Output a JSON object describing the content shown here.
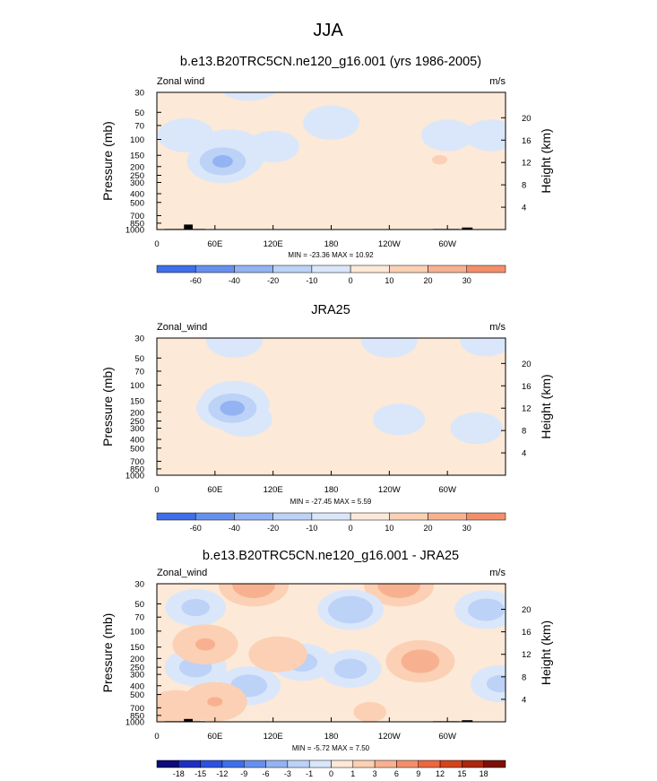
{
  "figure": {
    "title": "JJA"
  },
  "colors": {
    "frame": "#000000",
    "terrain": "#000000"
  },
  "chart_data": [
    {
      "type": "heatmap",
      "title": "b.e13.B20TRC5CN.ne120_g16.001 (yrs 1986-2005)",
      "field_label": "Zonal wind",
      "units": "m/s",
      "ylabel": "Pressure (mb)",
      "ylabel_right": "Height (km)",
      "x_ticks": [
        "0",
        "60E",
        "120E",
        "180",
        "120W",
        "60W"
      ],
      "x_tick_lon": [
        0,
        60,
        120,
        180,
        240,
        300
      ],
      "xlim": [
        0,
        360
      ],
      "y_ticks": [
        "30",
        "50",
        "70",
        "100",
        "150",
        "200",
        "250",
        "300",
        "400",
        "500",
        "700",
        "850",
        "1000"
      ],
      "ylim_mb": [
        1000,
        30
      ],
      "height_ticks": [
        "20",
        "16",
        "12",
        "8",
        "4"
      ],
      "stats": "MIN = -23.36  MAX =  10.92",
      "colorbar": {
        "levels": [
          "-60",
          "-40",
          "-20",
          "-10",
          "0",
          "10",
          "20",
          "30"
        ],
        "colors": [
          "#0b0b7a",
          "#1f30c0",
          "#2e52dd",
          "#3f6fe8",
          "#6790ee",
          "#93b3f3",
          "#bcd2f7",
          "#dae7fa",
          "#fde9d7",
          "#fbd0b4",
          "#f8b190",
          "#f48e6a",
          "#ea6740",
          "#d1441c",
          "#a9280f",
          "#7c1006"
        ]
      },
      "background_value": 2,
      "blobs": [
        {
          "lon": 95,
          "p": 22,
          "value": -12
        },
        {
          "lon": 180,
          "p": 65,
          "value": -4
        },
        {
          "lon": 300,
          "p": 90,
          "value": -3
        },
        {
          "lon": 345,
          "p": 90,
          "value": -3
        },
        {
          "lon": 30,
          "p": 90,
          "value": -4
        },
        {
          "lon": 75,
          "p": 128,
          "value": -9
        },
        {
          "lon": 75,
          "p": 158,
          "value": -16
        },
        {
          "lon": 68,
          "p": 175,
          "value": -22
        },
        {
          "lon": 120,
          "p": 120,
          "value": -3
        },
        {
          "lon": 272,
          "p": 145,
          "value": 8
        },
        {
          "lon": 292,
          "p": 168,
          "value": 10
        },
        {
          "lon": 70,
          "p": 700,
          "value": 7
        },
        {
          "lon": 95,
          "p": 450,
          "value": 4
        },
        {
          "lon": 60,
          "p": 850,
          "value": 4
        },
        {
          "lon": 250,
          "p": 380,
          "value": 6
        }
      ],
      "terrain": [
        {
          "lon0": 8,
          "lon1": 50,
          "p": 985
        },
        {
          "lon0": 28,
          "lon1": 37,
          "p": 880
        },
        {
          "lon0": 285,
          "lon1": 312,
          "p": 985
        },
        {
          "lon0": 315,
          "lon1": 326,
          "p": 950
        }
      ]
    },
    {
      "type": "heatmap",
      "title": "JRA25",
      "field_label": "Zonal_wind",
      "units": "m/s",
      "ylabel": "Pressure (mb)",
      "ylabel_right": "Height (km)",
      "x_ticks": [
        "0",
        "60E",
        "120E",
        "180",
        "120W",
        "60W"
      ],
      "x_tick_lon": [
        0,
        60,
        120,
        180,
        240,
        300
      ],
      "xlim": [
        0,
        360
      ],
      "y_ticks": [
        "30",
        "50",
        "70",
        "100",
        "150",
        "200",
        "250",
        "300",
        "400",
        "500",
        "700",
        "850",
        "1000"
      ],
      "ylim_mb": [
        1000,
        30
      ],
      "height_ticks": [
        "20",
        "16",
        "12",
        "8",
        "4"
      ],
      "stats": "MIN = -27.45  MAX =  5.59",
      "colorbar": {
        "levels": [
          "-60",
          "-40",
          "-20",
          "-10",
          "0",
          "10",
          "20",
          "30"
        ],
        "colors": [
          "#0b0b7a",
          "#1f30c0",
          "#2e52dd",
          "#3f6fe8",
          "#6790ee",
          "#93b3f3",
          "#bcd2f7",
          "#dae7fa",
          "#fde9d7",
          "#fbd0b4",
          "#f8b190",
          "#f48e6a",
          "#ea6740",
          "#d1441c",
          "#a9280f",
          "#7c1006"
        ]
      },
      "background_value": 2,
      "blobs": [
        {
          "lon": 80,
          "p": 32,
          "value": -4
        },
        {
          "lon": 240,
          "p": 32,
          "value": -4
        },
        {
          "lon": 340,
          "p": 32,
          "value": -3
        },
        {
          "lon": 240,
          "p": 70,
          "value": 7
        },
        {
          "lon": 200,
          "p": 120,
          "value": 6
        },
        {
          "lon": 320,
          "p": 160,
          "value": 6
        },
        {
          "lon": 90,
          "p": 240,
          "value": -4
        },
        {
          "lon": 250,
          "p": 240,
          "value": -3
        },
        {
          "lon": 330,
          "p": 300,
          "value": -3
        },
        {
          "lon": 80,
          "p": 150,
          "value": -10
        },
        {
          "lon": 80,
          "p": 165,
          "value": -18
        },
        {
          "lon": 78,
          "p": 180,
          "value": -24
        },
        {
          "lon": 70,
          "p": 650,
          "value": 5
        },
        {
          "lon": 100,
          "p": 580,
          "value": 4
        }
      ],
      "terrain": []
    },
    {
      "type": "heatmap",
      "title": "b.e13.B20TRC5CN.ne120_g16.001 - JRA25",
      "field_label": "Zonal_wind",
      "units": "m/s",
      "ylabel": "Pressure (mb)",
      "ylabel_right": "Height (km)",
      "x_ticks": [
        "0",
        "60E",
        "120E",
        "180",
        "120W",
        "60W"
      ],
      "x_tick_lon": [
        0,
        60,
        120,
        180,
        240,
        300
      ],
      "xlim": [
        0,
        360
      ],
      "y_ticks": [
        "30",
        "50",
        "70",
        "100",
        "150",
        "200",
        "250",
        "300",
        "400",
        "500",
        "700",
        "850",
        "1000"
      ],
      "ylim_mb": [
        1000,
        30
      ],
      "height_ticks": [
        "20",
        "16",
        "12",
        "8",
        "4"
      ],
      "stats": "MIN = -5.72  MAX =  7.50",
      "colorbar": {
        "levels": [
          "-18",
          "-15",
          "-12",
          "-9",
          "-6",
          "-3",
          "-1",
          "0",
          "1",
          "3",
          "6",
          "9",
          "12",
          "15",
          "18"
        ],
        "colors": [
          "#0b0b7a",
          "#1f30c0",
          "#2e52dd",
          "#3f6fe8",
          "#6790ee",
          "#93b3f3",
          "#bcd2f7",
          "#dae7fa",
          "#fde9d7",
          "#fbd0b4",
          "#f8b190",
          "#f48e6a",
          "#ea6740",
          "#d1441c",
          "#a9280f",
          "#7c1006"
        ]
      },
      "background_value": 0.5,
      "blobs": [
        {
          "lon": 100,
          "p": 31,
          "value": 5
        },
        {
          "lon": 250,
          "p": 31,
          "value": 5
        },
        {
          "lon": 200,
          "p": 58,
          "value": -2.4
        },
        {
          "lon": 340,
          "p": 58,
          "value": -1.8
        },
        {
          "lon": 40,
          "p": 55,
          "value": -1.4
        },
        {
          "lon": 200,
          "p": 260,
          "value": -1.6
        },
        {
          "lon": 150,
          "p": 220,
          "value": -1.5
        },
        {
          "lon": 40,
          "p": 250,
          "value": -1.6
        },
        {
          "lon": 355,
          "p": 380,
          "value": -1.4
        },
        {
          "lon": 95,
          "p": 400,
          "value": -1.8
        },
        {
          "lon": 272,
          "p": 215,
          "value": 4.5
        },
        {
          "lon": 50,
          "p": 140,
          "value": 3.2
        },
        {
          "lon": 125,
          "p": 180,
          "value": 2.2
        },
        {
          "lon": 60,
          "p": 600,
          "value": 3
        },
        {
          "lon": 20,
          "p": 720,
          "value": 2.5
        },
        {
          "lon": 220,
          "p": 780,
          "value": 1.2
        }
      ],
      "terrain": [
        {
          "lon0": 8,
          "lon1": 50,
          "p": 985
        },
        {
          "lon0": 28,
          "lon1": 37,
          "p": 930
        },
        {
          "lon0": 285,
          "lon1": 312,
          "p": 985
        },
        {
          "lon0": 315,
          "lon1": 326,
          "p": 960
        }
      ]
    }
  ]
}
